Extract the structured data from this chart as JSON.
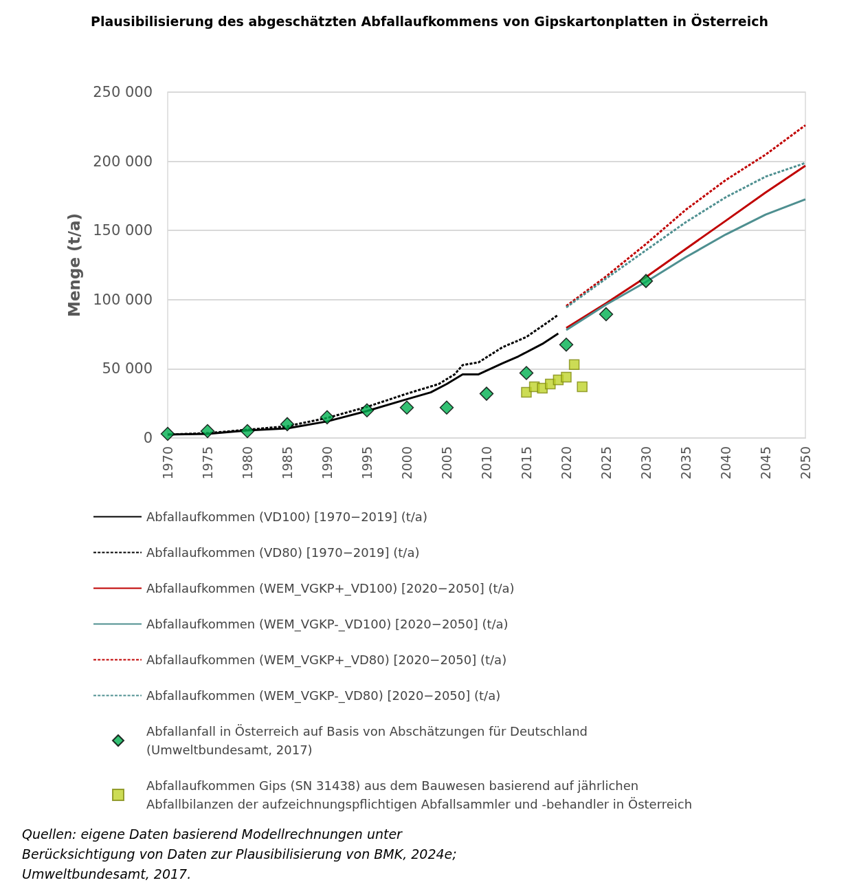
{
  "chart_data": {
    "type": "line",
    "title": "Plausibilisierung des abgeschätzten Abfallaufkommens von Gipskartonplatten in Österreich",
    "ylabel": "Menge (t/a)",
    "xlim": [
      1970,
      2050
    ],
    "xticks": [
      1970,
      1975,
      1980,
      1985,
      1990,
      1995,
      2000,
      2005,
      2010,
      2015,
      2020,
      2025,
      2030,
      2035,
      2040,
      2045,
      2050
    ],
    "ylim": [
      0,
      250000
    ],
    "yticks": [
      {
        "value": 0,
        "label": "0"
      },
      {
        "value": 50000,
        "label": "50 000"
      },
      {
        "value": 100000,
        "label": "100 000"
      },
      {
        "value": 150000,
        "label": "150 000"
      },
      {
        "value": 200000,
        "label": "200 000"
      },
      {
        "value": 250000,
        "label": "250 000"
      }
    ],
    "grid": "y",
    "legend": "bottom",
    "annotations": [
      "Quellen: eigene Daten basierend Modellrechnungen unter Berücksichtigung von Daten zur Plausibilisierung von BMK, 2024e; Umweltbundesamt, 2017."
    ],
    "series": [
      {
        "name": "Abfallaufkommen (VD100) [1970−2019] (t/a)",
        "type": "line",
        "color": "#000000",
        "line_style": "solid",
        "marker": "none",
        "x": [
          1970,
          1975,
          1980,
          1985,
          1990,
          1995,
          2000,
          2003,
          2005,
          2007,
          2009,
          2012,
          2014,
          2017,
          2019
        ],
        "values": [
          2500,
          3000,
          5500,
          7000,
          12000,
          19500,
          28000,
          33000,
          39000,
          46000,
          46000,
          54000,
          59000,
          68000,
          75500
        ]
      },
      {
        "name": "Abfallaufkommen (VD80) [1970−2019] (t/a)",
        "type": "line",
        "color": "#000000",
        "line_style": "dashed",
        "marker": "none",
        "x": [
          1970,
          1975,
          1980,
          1985,
          1990,
          1995,
          2000,
          2004,
          2006,
          2007,
          2009,
          2012,
          2015,
          2019
        ],
        "values": [
          2500,
          3500,
          6000,
          8500,
          14500,
          22500,
          32000,
          39000,
          46000,
          52700,
          54700,
          65600,
          73000,
          89000
        ]
      },
      {
        "name": "Abfallaufkommen (WEM_VGKP+_VD100) [2020−2050] (t/a)",
        "type": "line",
        "color": "#c00000",
        "line_style": "solid",
        "marker": "none",
        "x": [
          2020,
          2025,
          2030,
          2035,
          2040,
          2045,
          2050
        ],
        "values": [
          79500,
          97400,
          116300,
          136700,
          157000,
          177400,
          196800
        ]
      },
      {
        "name": "Abfallaufkommen (WEM_VGKP-_VD100) [2020−2050] (t/a)",
        "type": "line",
        "color": "#4e8f90",
        "line_style": "solid",
        "marker": "none",
        "x": [
          2020,
          2025,
          2030,
          2035,
          2040,
          2045,
          2050
        ],
        "values": [
          78000,
          96400,
          112800,
          130700,
          147100,
          161500,
          172500
        ]
      },
      {
        "name": "Abfallaufkommen (WEM_VGKP+_VD80) [2020−2050] (t/a)",
        "type": "line",
        "color": "#c00000",
        "line_style": "dashed",
        "marker": "none",
        "x": [
          2020,
          2025,
          2030,
          2035,
          2040,
          2045,
          2050
        ],
        "values": [
          95400,
          116800,
          140200,
          165000,
          186400,
          204800,
          226100
        ]
      },
      {
        "name": "Abfallaufkommen (WEM_VGKP-_VD80) [2020−2050] (t/a)",
        "type": "line",
        "color": "#4e8f90",
        "line_style": "dashed",
        "marker": "none",
        "x": [
          2020,
          2025,
          2030,
          2035,
          2040,
          2045,
          2050
        ],
        "values": [
          94400,
          115300,
          135700,
          156000,
          174000,
          188900,
          198800
        ]
      },
      {
        "name": "Abfallanfall in Österreich auf Basis von Abschätzungen für Deutschland (Umweltbundesamt, 2017)",
        "type": "scatter",
        "color": "#00b050",
        "marker": "diamond",
        "x": [
          1970,
          1975,
          1980,
          1985,
          1990,
          1995,
          2000,
          2005,
          2010,
          2015,
          2020,
          2025,
          2030
        ],
        "values": [
          3000,
          5000,
          5000,
          10000,
          15000,
          20000,
          22000,
          22000,
          32000,
          47000,
          67500,
          89500,
          113500
        ]
      },
      {
        "name": "Abfallaufkommen Gips (SN 31438) aus dem Bauwesen basierend auf jährlichen Abfallbilanzen der aufzeichnungspflichtigen Abfallsammler und -behandler in Österreich",
        "type": "scatter",
        "color": "#bfd32a",
        "marker": "square",
        "x": [
          2015,
          2016,
          2017,
          2018,
          2019,
          2020,
          2021,
          2022
        ],
        "values": [
          33000,
          37000,
          36000,
          39000,
          42000,
          44000,
          53000,
          37000
        ]
      }
    ]
  }
}
